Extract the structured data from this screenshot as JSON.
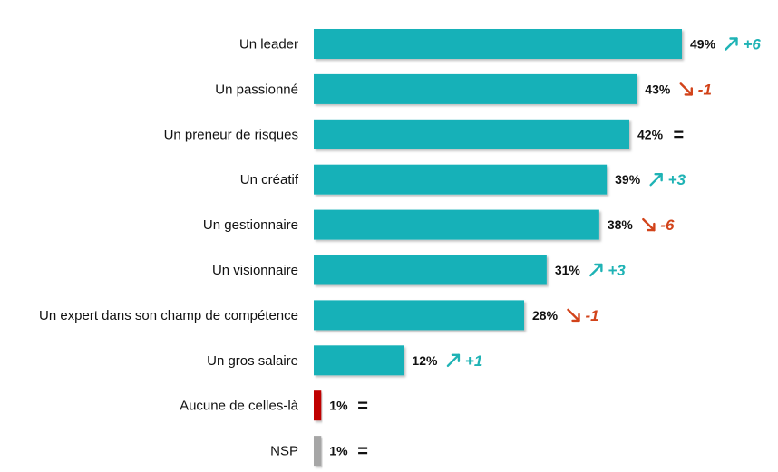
{
  "chart_data": {
    "type": "bar",
    "orientation": "horizontal",
    "categories": [
      "Un leader",
      "Un passionné",
      "Un preneur de risques",
      "Un créatif",
      "Un gestionnaire",
      "Un visionnaire",
      "Un expert dans son champ de compétence",
      "Un gros salaire",
      "Aucune de celles-là",
      "NSP"
    ],
    "values": [
      49,
      43,
      42,
      39,
      38,
      31,
      28,
      12,
      1,
      1
    ],
    "value_labels": [
      "49%",
      "43%",
      "42%",
      "39%",
      "38%",
      "31%",
      "28%",
      "12%",
      "1%",
      "1%"
    ],
    "changes": [
      {
        "direction": "up",
        "label": "+6"
      },
      {
        "direction": "down",
        "label": "-1"
      },
      {
        "direction": "same",
        "label": "="
      },
      {
        "direction": "up",
        "label": "+3"
      },
      {
        "direction": "down",
        "label": "-6"
      },
      {
        "direction": "up",
        "label": "+3"
      },
      {
        "direction": "down",
        "label": "-1"
      },
      {
        "direction": "up",
        "label": "+1"
      },
      {
        "direction": "same",
        "label": "="
      },
      {
        "direction": "same",
        "label": "="
      }
    ],
    "bar_colors": [
      "#14b1b8",
      "#14b1b8",
      "#14b1b8",
      "#14b1b8",
      "#14b1b8",
      "#14b1b8",
      "#14b1b8",
      "#14b1b8",
      "#c00000",
      "#a6a6a6"
    ],
    "up_color": "#1fb3b5",
    "down_color": "#d2431a",
    "xlim": [
      0,
      50
    ],
    "grid": false,
    "legend": "none"
  }
}
